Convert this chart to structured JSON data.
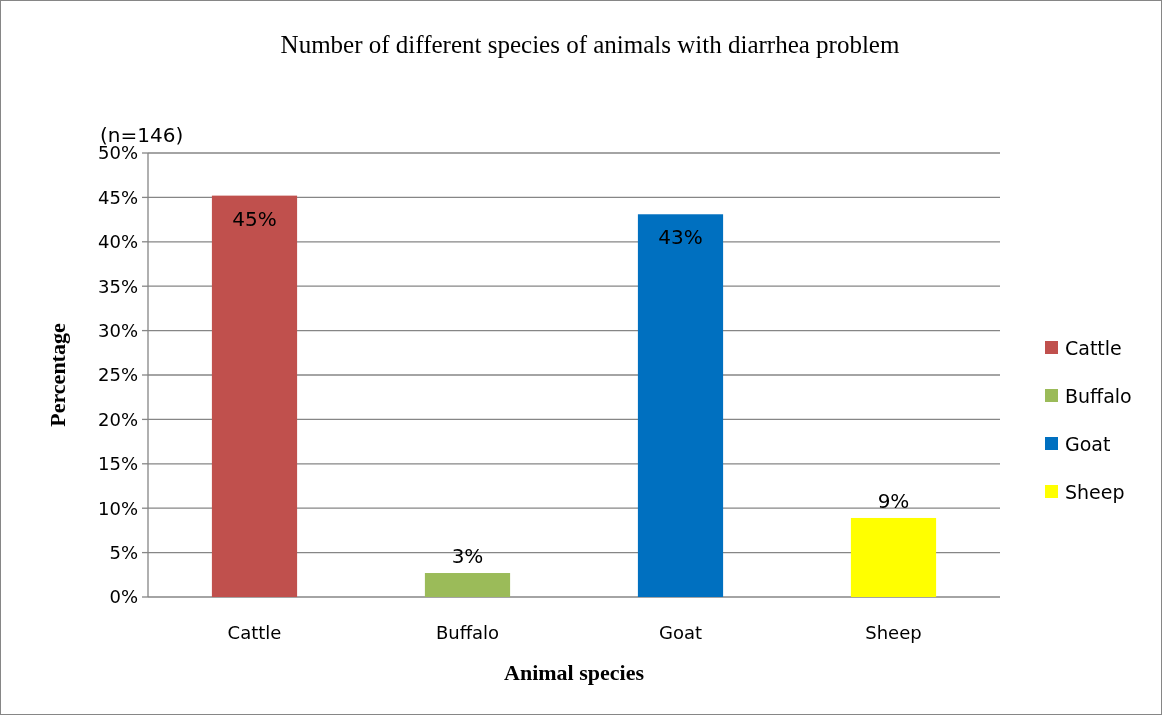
{
  "chart_data": {
    "type": "bar",
    "title": "Number of different species of animals with diarrhea problem",
    "xlabel": "Animal species",
    "ylabel": "Percentage",
    "annotations": [
      "(n=146)"
    ],
    "categories": [
      "Cattle",
      "Buffalo",
      "Goat",
      "Sheep"
    ],
    "series": [
      {
        "name": "Cattle",
        "color": "#c0504d",
        "values": [
          45.2,
          null,
          null,
          null
        ],
        "value_labels": [
          "45%",
          null,
          null,
          null
        ]
      },
      {
        "name": "Buffalo",
        "color": "#9bbb59",
        "values": [
          null,
          2.7,
          null,
          null
        ],
        "value_labels": [
          null,
          "3%",
          null,
          null
        ]
      },
      {
        "name": "Goat",
        "color": "#0070c0",
        "values": [
          null,
          null,
          43.1,
          null
        ],
        "value_labels": [
          null,
          null,
          "43%",
          null
        ]
      },
      {
        "name": "Sheep",
        "color": "#ffff00",
        "values": [
          null,
          null,
          null,
          8.9
        ],
        "value_labels": [
          null,
          null,
          null,
          "9%"
        ]
      }
    ],
    "ylim": [
      0,
      50
    ],
    "yticks": [
      {
        "value": 0,
        "label": "0%"
      },
      {
        "value": 5,
        "label": "5%"
      },
      {
        "value": 10,
        "label": "10%"
      },
      {
        "value": 15,
        "label": "15%"
      },
      {
        "value": 20,
        "label": "20%"
      },
      {
        "value": 25,
        "label": "25%"
      },
      {
        "value": 30,
        "label": "30%"
      },
      {
        "value": 35,
        "label": "35%"
      },
      {
        "value": 40,
        "label": "40%"
      },
      {
        "value": 45,
        "label": "45%"
      },
      {
        "value": 50,
        "label": "50%"
      }
    ],
    "grid": "y",
    "legend": "right"
  }
}
